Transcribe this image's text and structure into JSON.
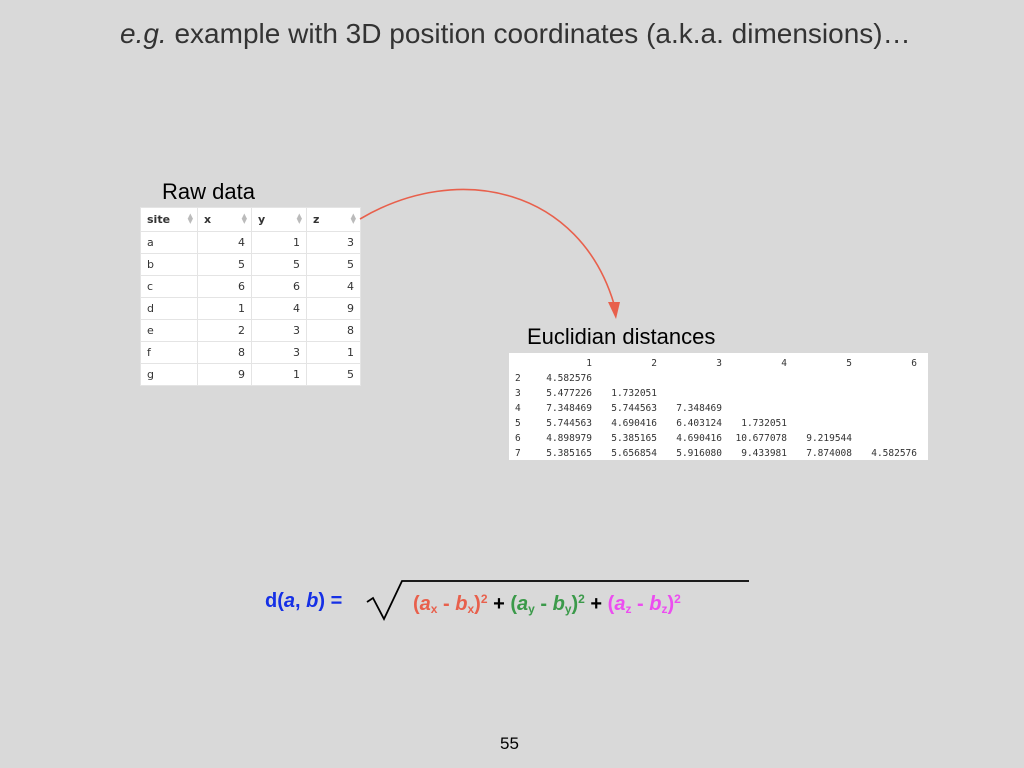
{
  "title": {
    "italic": "e.g.",
    "rest": " example with 3D position coordinates (a.k.a. dimensions)…"
  },
  "raw_label": "Raw data",
  "raw_table": {
    "headers": [
      "site",
      "x",
      "y",
      "z"
    ],
    "rows": [
      [
        "a",
        "4",
        "1",
        "3"
      ],
      [
        "b",
        "5",
        "5",
        "5"
      ],
      [
        "c",
        "6",
        "6",
        "4"
      ],
      [
        "d",
        "1",
        "4",
        "9"
      ],
      [
        "e",
        "2",
        "3",
        "8"
      ],
      [
        "f",
        "8",
        "3",
        "1"
      ],
      [
        "g",
        "9",
        "1",
        "5"
      ]
    ]
  },
  "distances_label": "Euclidian distances",
  "distance_matrix": {
    "col_headers": [
      "1",
      "2",
      "3",
      "4",
      "5",
      "6"
    ],
    "rows": [
      {
        "name": "2",
        "values": [
          "4.582576",
          "",
          "",
          "",
          "",
          ""
        ]
      },
      {
        "name": "3",
        "values": [
          "5.477226",
          "1.732051",
          "",
          "",
          "",
          ""
        ]
      },
      {
        "name": "4",
        "values": [
          "7.348469",
          "5.744563",
          "7.348469",
          "",
          "",
          ""
        ]
      },
      {
        "name": "5",
        "values": [
          "5.744563",
          "4.690416",
          "6.403124",
          "1.732051",
          "",
          ""
        ]
      },
      {
        "name": "6",
        "values": [
          "4.898979",
          "5.385165",
          "4.690416",
          "10.677078",
          "9.219544",
          ""
        ]
      },
      {
        "name": "7",
        "values": [
          "5.385165",
          "5.656854",
          "5.916080",
          "9.433981",
          "7.874008",
          "4.582576"
        ]
      }
    ]
  },
  "formula": {
    "lhs_d": "d(",
    "lhs_a": "a",
    "lhs_comma": ", ",
    "lhs_b": "b",
    "lhs_close": ") =",
    "open_paren": "(",
    "a": "a",
    "b": "b",
    "minus": " - ",
    "close_paren": ")",
    "square": "2",
    "plus": " + ",
    "sub_x": "x",
    "sub_y": "y",
    "sub_z": "z"
  },
  "colors": {
    "arrow": "#e8604c",
    "x_term": "#e8604c",
    "y_term": "#3b9a4a",
    "z_term": "#ec4df0",
    "lhs": "#1530e6"
  },
  "page_number": "55"
}
